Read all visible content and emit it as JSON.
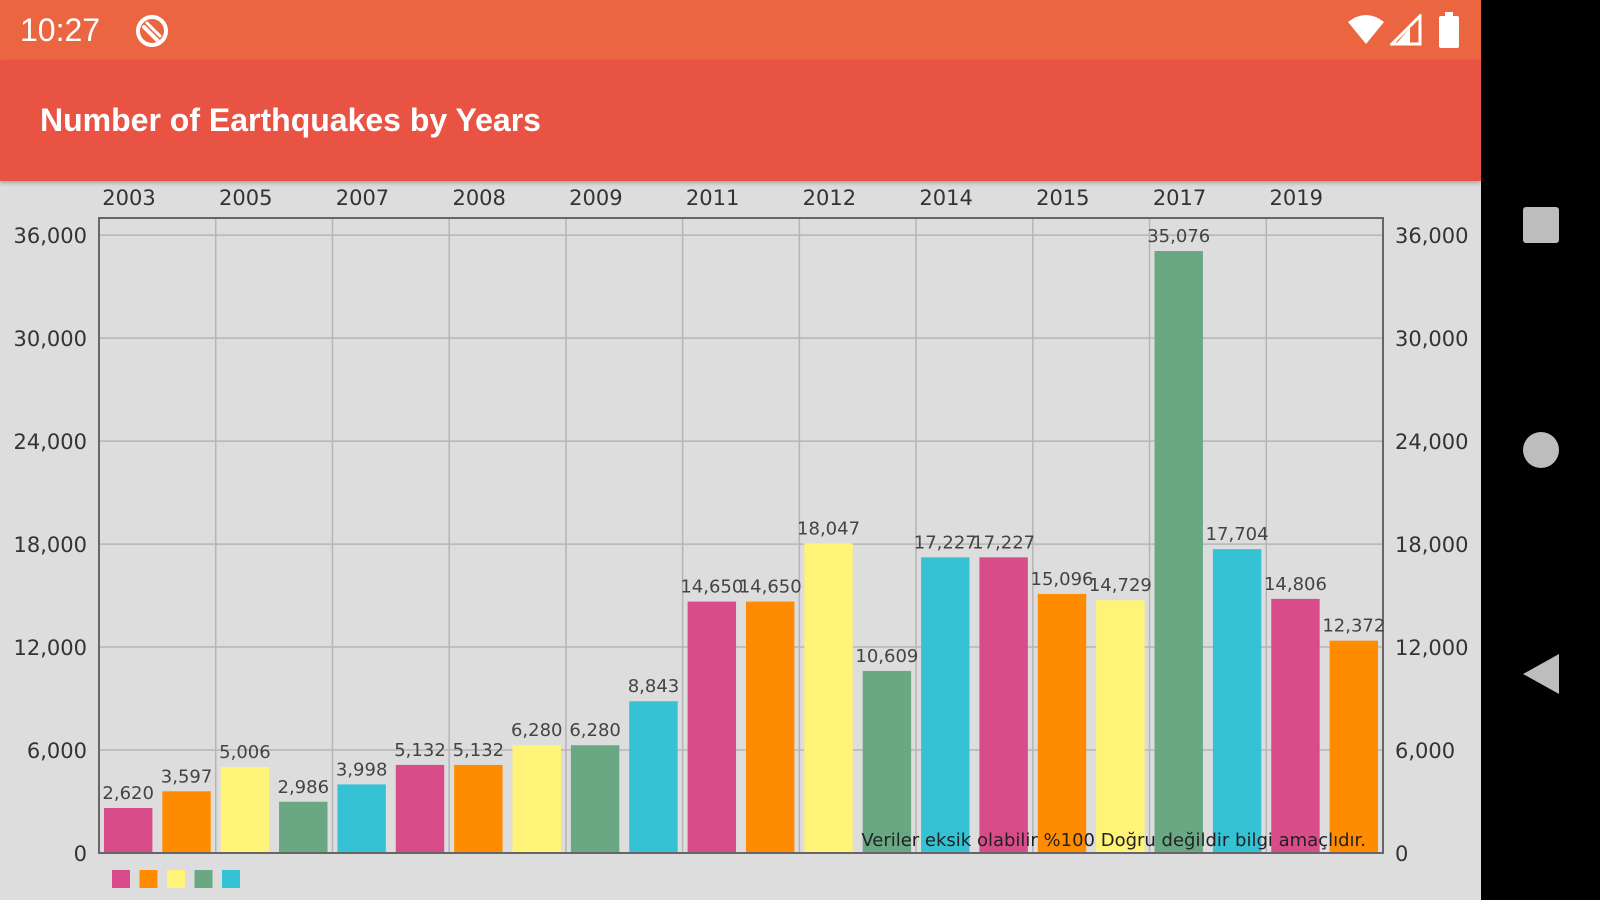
{
  "status_bar": {
    "time": "10:27"
  },
  "app_bar": {
    "title": "Number of Earthquakes by Years"
  },
  "colors": {
    "status_bar": "#ec6541",
    "app_bar": "#e95343",
    "background": "#dddddd",
    "palette": [
      "#d94c8a",
      "#ff8c00",
      "#fff478",
      "#6aa884",
      "#35c2d4"
    ]
  },
  "icons": [
    "do-not-disturb-icon",
    "wifi-icon",
    "signal-icon",
    "battery-icon",
    "recents-button-icon",
    "home-button-icon",
    "back-button-icon"
  ],
  "chart_data": {
    "type": "bar",
    "top_axis_labels": [
      "2003",
      "2005",
      "2007",
      "2008",
      "2009",
      "2011",
      "2012",
      "2014",
      "2015",
      "2017",
      "2019"
    ],
    "values": [
      2620,
      3597,
      5006,
      2986,
      3998,
      5132,
      5132,
      6280,
      6280,
      8843,
      14650,
      14650,
      18047,
      10609,
      17227,
      17227,
      15096,
      14729,
      35076,
      17704,
      14806,
      12372
    ],
    "value_labels": [
      "2,620",
      "3,597",
      "5,006",
      "2,986",
      "3,998",
      "5,132",
      "5,132",
      "6,280",
      "6,280",
      "8,843",
      "14,650",
      "14,650",
      "18,047",
      "10,609",
      "17,227",
      "17,227",
      "15,096",
      "14,729",
      "35,076",
      "17,704",
      "14,806",
      "12,372"
    ],
    "y_ticks": [
      0,
      6000,
      12000,
      18000,
      24000,
      30000,
      36000
    ],
    "y_tick_labels": [
      "0",
      "6,000",
      "12,000",
      "18,000",
      "24,000",
      "30,000",
      "36,000"
    ],
    "ylim": [
      0,
      37000
    ],
    "grid": true,
    "dual_y_axis": true,
    "legend_placement": "bottom-left",
    "legend_swatch_count": 5,
    "description": "Veriler eksik olabilir %100 Doğru değildir bilgi amaçlıdır."
  }
}
